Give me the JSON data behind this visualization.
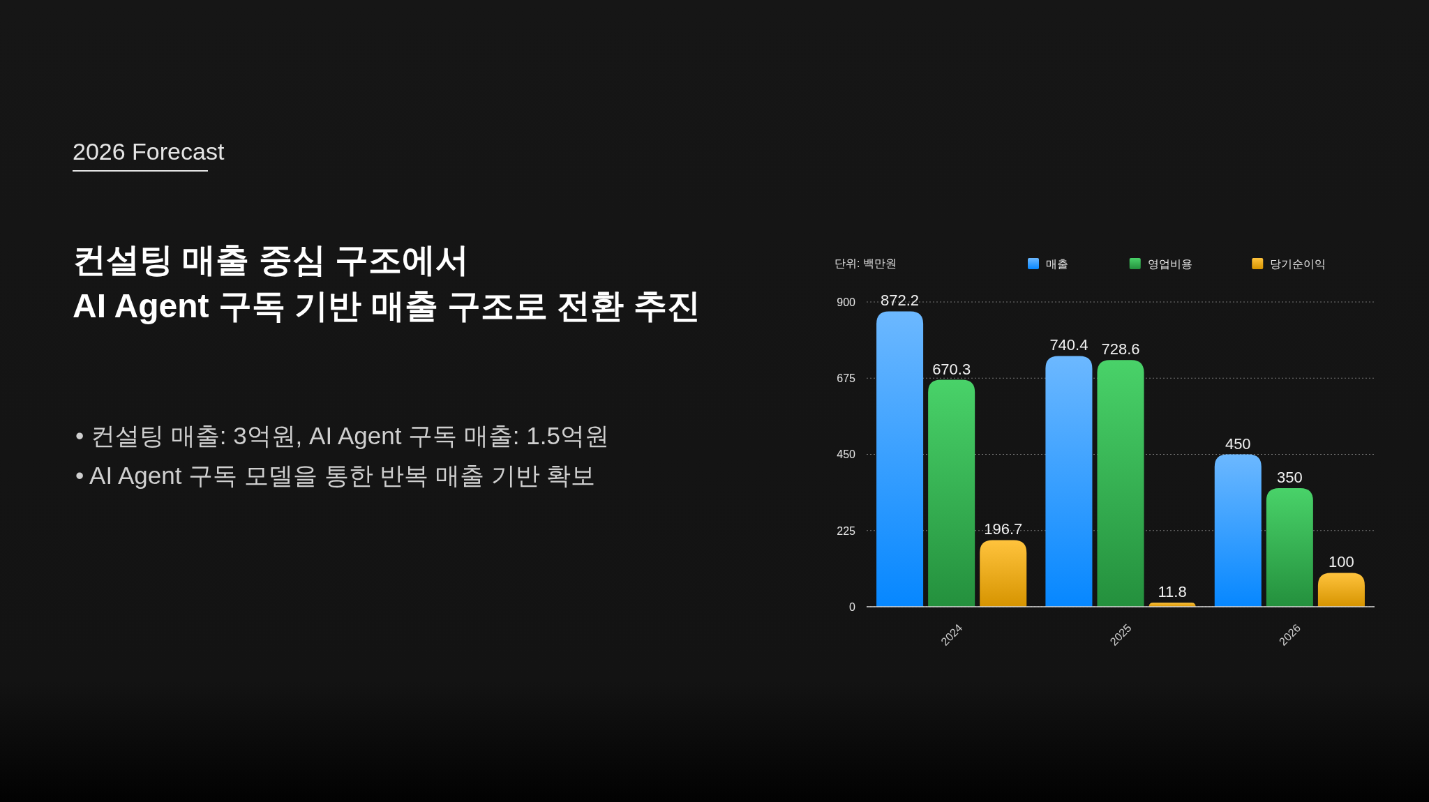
{
  "chart_data": {
    "type": "bar",
    "title": "2026 Forecast",
    "subtitle": "컨설팅 매출 중심 구조에서\nAI Agent 구독 기반 매출 구조로 전환 추진",
    "ylabel": "단위: 백만원",
    "annotations": [
      "• 컨설팅 매출: 3억원, AI Agent 구독 매출: 1.5억원",
      "• AI Agent 구독 모델을 통한 반복 매출 기반 확보"
    ],
    "categories": [
      "2024",
      "2025",
      "2026"
    ],
    "series": [
      {
        "name": "매출",
        "color": "#2f9bff",
        "values": [
          872.2,
          740.4,
          450
        ]
      },
      {
        "name": "영업비용",
        "color": "#2cb14b",
        "values": [
          670.3,
          728.6,
          350
        ]
      },
      {
        "name": "당기순이익",
        "color": "#ffb000",
        "values": [
          196.7,
          11.8,
          100
        ]
      }
    ],
    "ylim": [
      0,
      900
    ],
    "yticks": [
      0,
      225,
      450,
      675,
      900
    ],
    "grid": "y",
    "legend": "top",
    "data_labels": true
  }
}
